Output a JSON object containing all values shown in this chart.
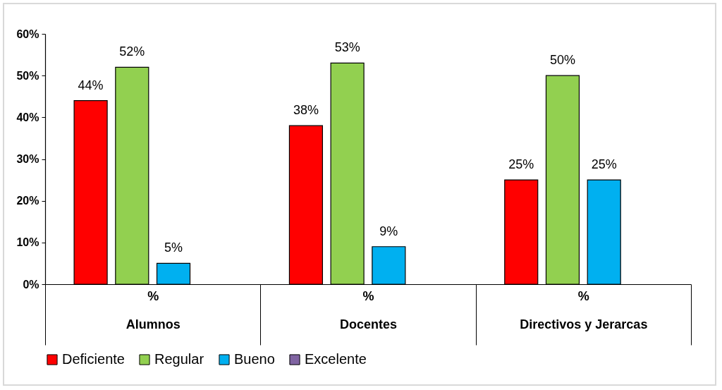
{
  "chart_data": {
    "type": "bar",
    "categories": [
      "Alumnos",
      "Docentes",
      "Directivos y Jerarcas"
    ],
    "annotations": [
      "%",
      "%",
      "%"
    ],
    "series": [
      {
        "name": "Deficiente",
        "color": "#ff0000",
        "values": [
          44,
          38,
          25
        ],
        "value_labels": [
          "44%",
          "38%",
          "25%"
        ]
      },
      {
        "name": "Regular",
        "color": "#92d050",
        "values": [
          52,
          53,
          50
        ],
        "value_labels": [
          "52%",
          "53%",
          "50%"
        ]
      },
      {
        "name": "Bueno",
        "color": "#00b0f0",
        "values": [
          5,
          9,
          25
        ],
        "value_labels": [
          "5%",
          "9%",
          "25%"
        ]
      },
      {
        "name": "Excelente",
        "color": "#8064a2",
        "values": [
          null,
          null,
          null
        ],
        "value_labels": [
          null,
          null,
          null
        ]
      }
    ],
    "ylim": [
      0,
      60
    ],
    "yticks": [
      {
        "value": 0,
        "label": "0%"
      },
      {
        "value": 10,
        "label": "10%"
      },
      {
        "value": 20,
        "label": "20%"
      },
      {
        "value": 30,
        "label": "30%"
      },
      {
        "value": 40,
        "label": "40%"
      },
      {
        "value": 50,
        "label": "50%"
      },
      {
        "value": 60,
        "label": "60%"
      }
    ],
    "grid": false,
    "legend": "bottom"
  }
}
